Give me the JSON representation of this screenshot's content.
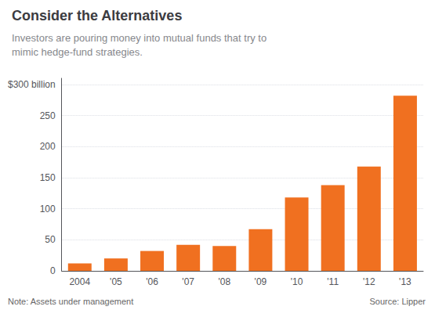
{
  "chart_data": {
    "type": "bar",
    "title": "Consider the Alternatives",
    "subtitle": "Investors are pouring money into mutual funds that try to\nmimic hedge-fund strategies.",
    "categories": [
      "2004",
      "'05",
      "'06",
      "'07",
      "'08",
      "'09",
      "'10",
      "'11",
      "'12",
      "'13"
    ],
    "values": [
      12,
      20,
      32,
      42,
      40,
      67,
      118,
      138,
      168,
      282
    ],
    "color": "#F07020",
    "ylim": [
      0,
      310
    ],
    "yticks": [
      0,
      50,
      100,
      150,
      200,
      250,
      {
        "value": 300,
        "label": "$300 billion"
      }
    ],
    "grid": true,
    "note": "Note: Assets under management",
    "source": "Source: Lipper"
  }
}
